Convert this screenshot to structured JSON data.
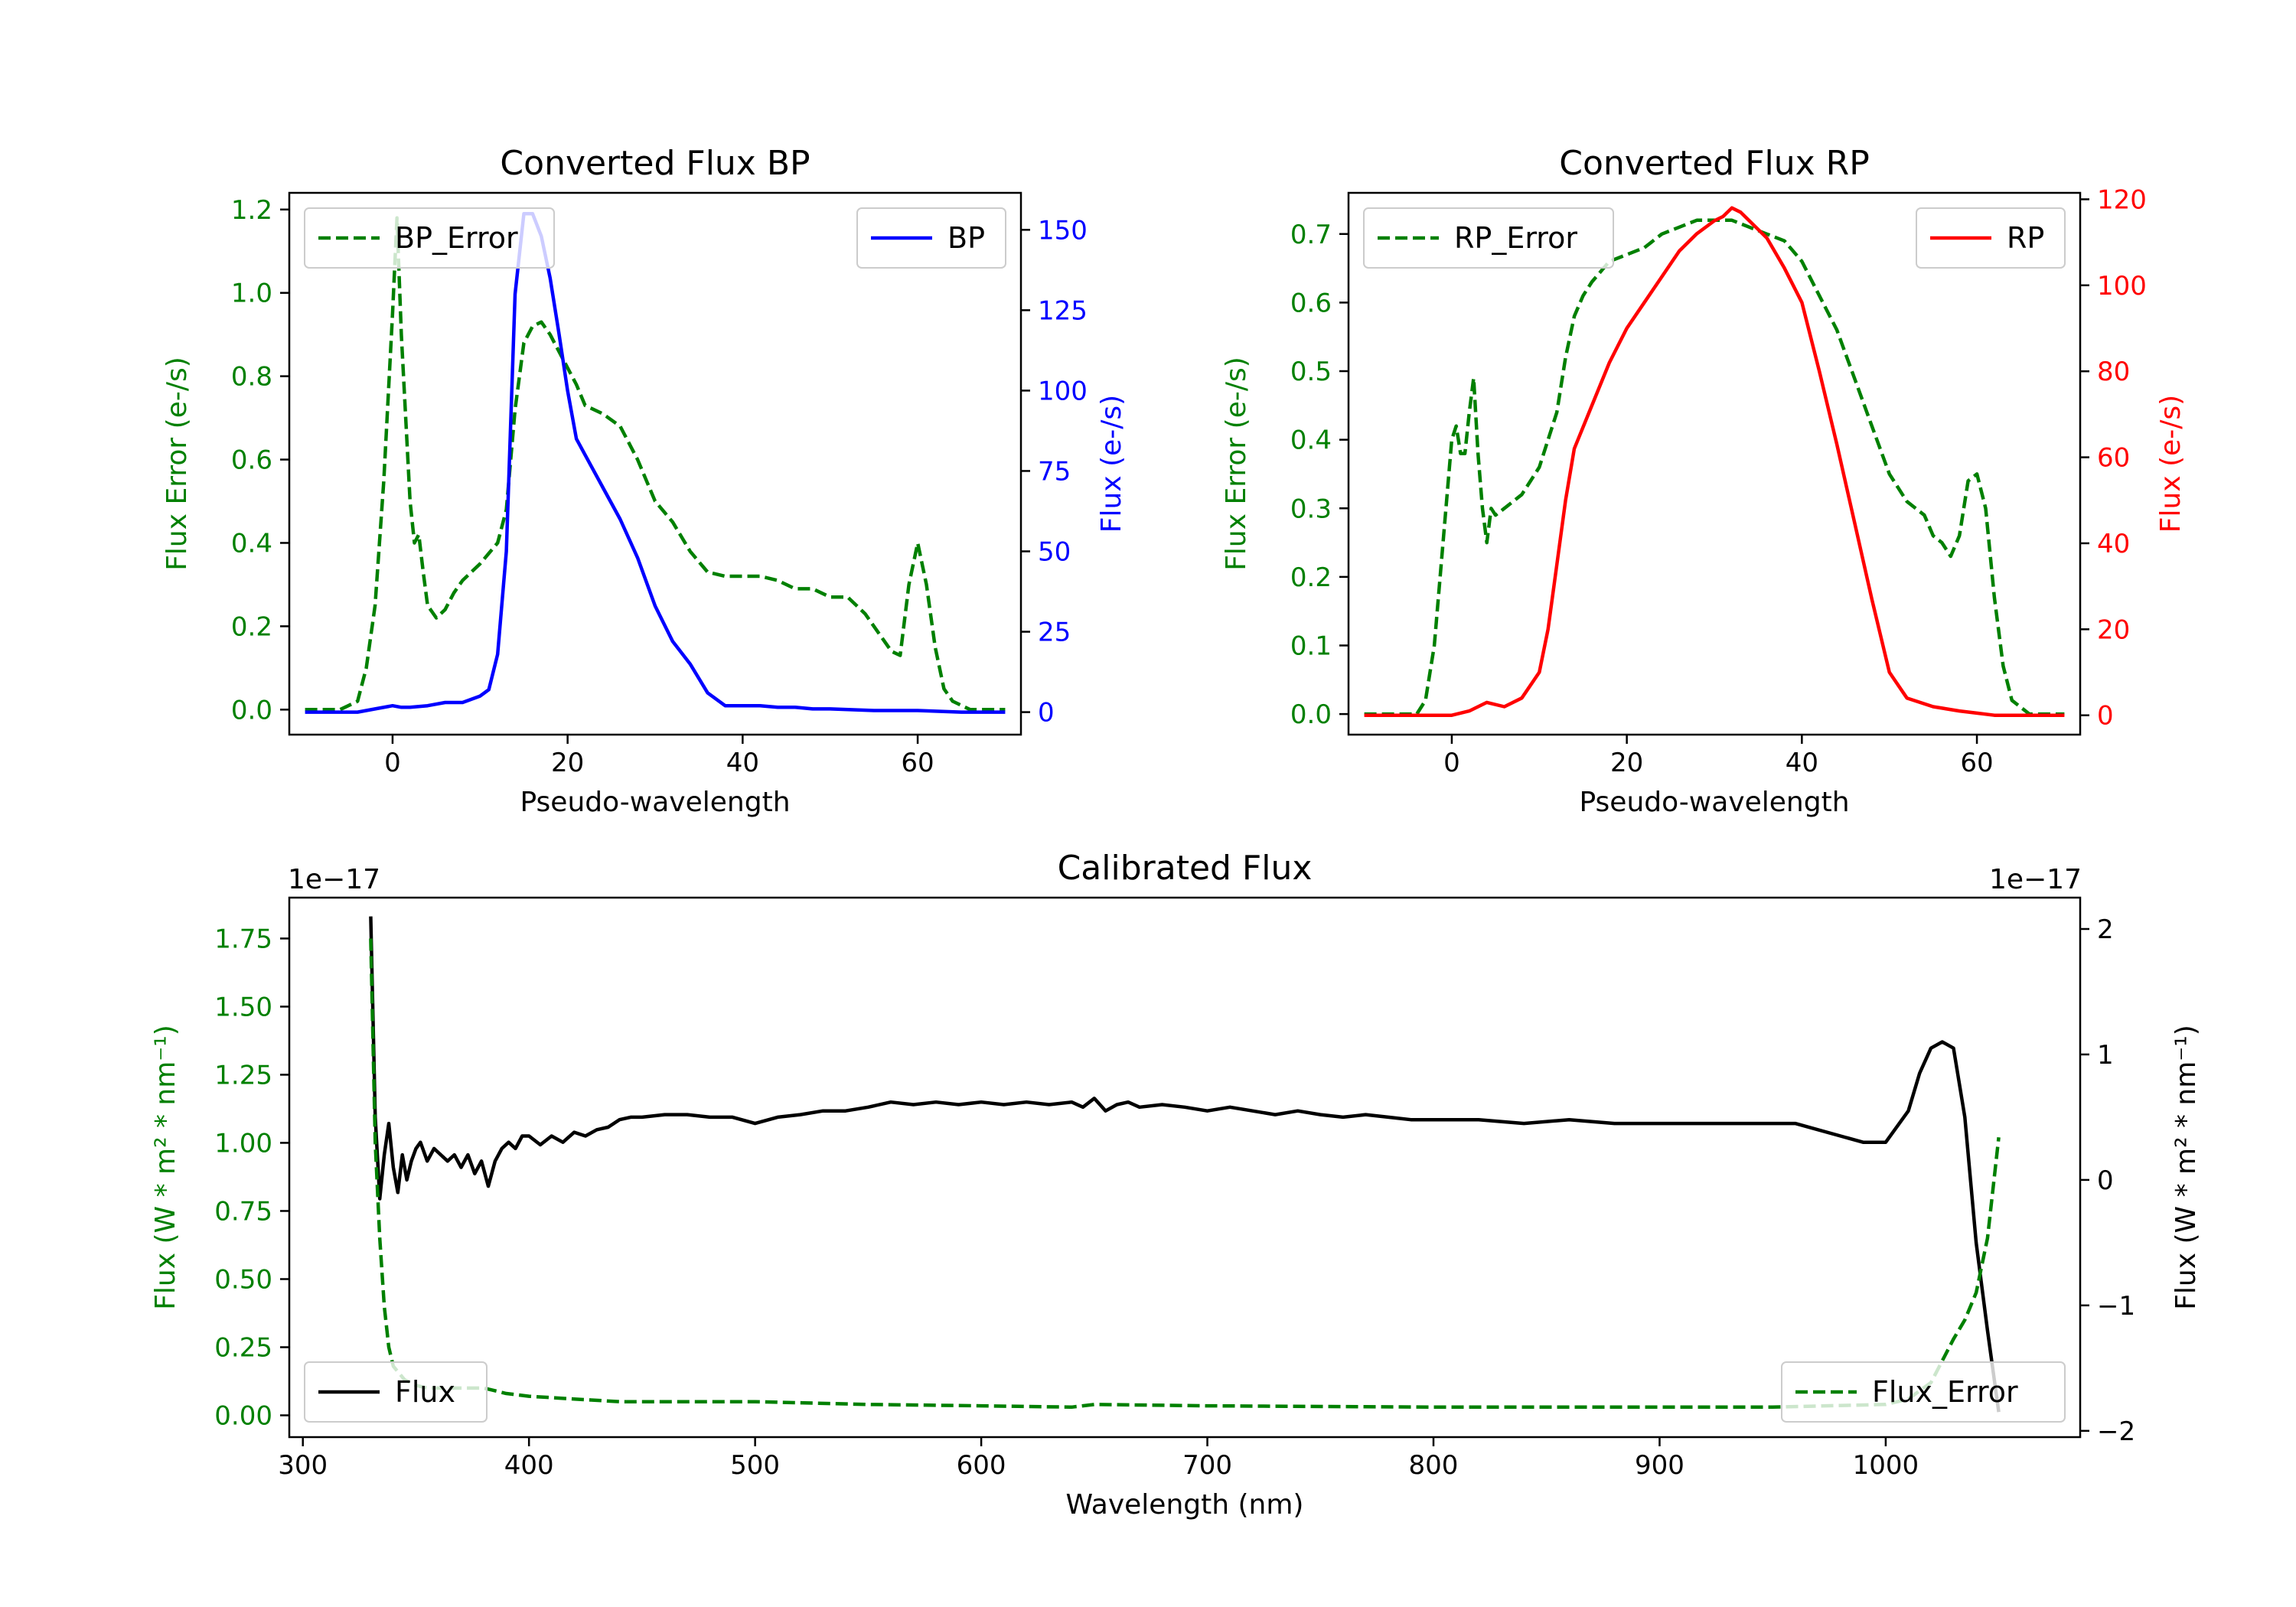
{
  "chart_data": [
    {
      "type": "line",
      "title": "Converted Flux BP",
      "xlabel": "Pseudo-wavelength",
      "ylabel_left": "Flux Error (e-/s)",
      "ylabel_right": "Flux (e-/s)",
      "xlim": [
        -11.8,
        71.8
      ],
      "ylim_left": [
        -0.06,
        1.24
      ],
      "ylim_right": [
        -7,
        161.5
      ],
      "xticks": [
        0,
        20,
        40,
        60
      ],
      "yticks_left": [
        "0.0",
        "0.2",
        "0.4",
        "0.6",
        "0.8",
        "1.0",
        "1.2"
      ],
      "yticks_right": [
        "0",
        "25",
        "50",
        "75",
        "100",
        "125",
        "150"
      ],
      "left_color": "#008000",
      "right_color": "#0000ff",
      "series": [
        {
          "name": "BP_Error",
          "axis": "left",
          "color": "#008000",
          "style": "dashed",
          "x": [
            -10,
            -6,
            -4,
            -3,
            -2,
            -1,
            0,
            0.5,
            1,
            2,
            2.5,
            3,
            3.5,
            4,
            5,
            6,
            7,
            8,
            10,
            12,
            13,
            14,
            15,
            16,
            17,
            18,
            19,
            20,
            21,
            22,
            24,
            26,
            28,
            30,
            32,
            34,
            36,
            38,
            40,
            42,
            44,
            46,
            48,
            50,
            52,
            54,
            56,
            57,
            58,
            59,
            60,
            61,
            62,
            63,
            64,
            66,
            70
          ],
          "y": [
            0,
            0,
            0.02,
            0.1,
            0.25,
            0.55,
            0.95,
            1.18,
            0.9,
            0.5,
            0.4,
            0.42,
            0.33,
            0.25,
            0.22,
            0.24,
            0.28,
            0.31,
            0.35,
            0.4,
            0.48,
            0.72,
            0.88,
            0.92,
            0.93,
            0.9,
            0.86,
            0.82,
            0.78,
            0.73,
            0.71,
            0.68,
            0.6,
            0.5,
            0.45,
            0.38,
            0.33,
            0.32,
            0.32,
            0.32,
            0.31,
            0.29,
            0.29,
            0.27,
            0.27,
            0.23,
            0.17,
            0.14,
            0.13,
            0.3,
            0.4,
            0.3,
            0.15,
            0.05,
            0.02,
            0,
            0
          ]
        },
        {
          "name": "BP",
          "axis": "right",
          "color": "#0000ff",
          "style": "solid",
          "x": [
            -10,
            -6,
            -4,
            -2,
            0,
            1,
            2,
            4,
            6,
            8,
            10,
            11,
            12,
            13,
            14,
            15,
            16,
            17,
            18,
            19,
            20,
            21,
            22,
            24,
            26,
            28,
            30,
            32,
            34,
            36,
            38,
            40,
            42,
            44,
            46,
            48,
            50,
            55,
            60,
            65,
            70
          ],
          "y": [
            0,
            0,
            0,
            1,
            2,
            1.5,
            1.5,
            2,
            3,
            3,
            5,
            7,
            18,
            50,
            130,
            155,
            155,
            148,
            135,
            118,
            100,
            85,
            80,
            70,
            60,
            48,
            33,
            22,
            15,
            6,
            2,
            2,
            2,
            1.5,
            1.5,
            1,
            1,
            0.5,
            0.5,
            0,
            0
          ]
        }
      ],
      "legend": [
        {
          "label": "BP_Error",
          "position": "upper-left"
        },
        {
          "label": "BP",
          "position": "upper-right"
        }
      ]
    },
    {
      "type": "line",
      "title": "Converted Flux RP",
      "xlabel": "Pseudo-wavelength",
      "ylabel_left": "Flux Error (e-/s)",
      "ylabel_right": "Flux (e-/s)",
      "xlim": [
        -11.8,
        71.8
      ],
      "ylim_left": [
        -0.03,
        0.76
      ],
      "ylim_right": [
        -4.5,
        121.5
      ],
      "xticks": [
        0,
        20,
        40,
        60
      ],
      "yticks_left": [
        "0.0",
        "0.1",
        "0.2",
        "0.3",
        "0.4",
        "0.5",
        "0.6",
        "0.7"
      ],
      "yticks_right": [
        "0",
        "20",
        "40",
        "60",
        "80",
        "100",
        "120"
      ],
      "left_color": "#008000",
      "right_color": "#ff0000",
      "series": [
        {
          "name": "RP_Error",
          "axis": "left",
          "color": "#008000",
          "style": "dashed",
          "x": [
            -10,
            -6,
            -4,
            -3,
            -2,
            -1,
            0,
            0.5,
            1,
            1.5,
            2,
            2.5,
            3,
            3.5,
            4,
            4.5,
            5,
            6,
            7,
            8,
            9,
            10,
            12,
            13,
            14,
            15,
            16,
            18,
            20,
            22,
            24,
            26,
            28,
            30,
            32,
            34,
            36,
            38,
            40,
            42,
            44,
            46,
            48,
            50,
            52,
            54,
            55,
            56,
            57,
            58,
            59,
            60,
            61,
            62,
            63,
            64,
            66,
            70
          ],
          "y": [
            0,
            0,
            0,
            0.02,
            0.1,
            0.25,
            0.4,
            0.42,
            0.38,
            0.38,
            0.44,
            0.49,
            0.38,
            0.3,
            0.25,
            0.3,
            0.29,
            0.3,
            0.31,
            0.32,
            0.34,
            0.36,
            0.44,
            0.52,
            0.58,
            0.61,
            0.63,
            0.66,
            0.67,
            0.68,
            0.7,
            0.71,
            0.72,
            0.72,
            0.72,
            0.71,
            0.7,
            0.69,
            0.66,
            0.61,
            0.56,
            0.49,
            0.42,
            0.35,
            0.31,
            0.29,
            0.26,
            0.25,
            0.23,
            0.26,
            0.34,
            0.35,
            0.3,
            0.17,
            0.07,
            0.02,
            0,
            0
          ]
        },
        {
          "name": "RP",
          "axis": "right",
          "color": "#ff0000",
          "style": "solid",
          "x": [
            -10,
            -4,
            -2,
            0,
            2,
            4,
            6,
            8,
            10,
            11,
            12,
            13,
            14,
            16,
            18,
            20,
            22,
            24,
            26,
            28,
            30,
            31,
            32,
            33,
            34,
            35,
            36,
            38,
            40,
            42,
            44,
            46,
            48,
            50,
            52,
            55,
            58,
            60,
            62,
            65,
            70
          ],
          "y": [
            0,
            0,
            0,
            0,
            1,
            3,
            2,
            4,
            10,
            20,
            35,
            50,
            62,
            72,
            82,
            90,
            96,
            102,
            108,
            112,
            115,
            116,
            118,
            117,
            115,
            113,
            111,
            104,
            96,
            80,
            63,
            45,
            27,
            10,
            4,
            2,
            1,
            0.5,
            0,
            0,
            0
          ]
        }
      ],
      "legend": [
        {
          "label": "RP_Error",
          "position": "upper-left"
        },
        {
          "label": "RP",
          "position": "upper-right"
        }
      ]
    },
    {
      "type": "line",
      "title": "Calibrated Flux",
      "xlabel": "Wavelength (nm)",
      "ylabel_left": "Flux (W * m² * nm⁻¹)",
      "ylabel_right": "Flux (W * m² * nm⁻¹)",
      "offset_left": "1e−17",
      "offset_right": "1e−17",
      "xlim": [
        294,
        1086
      ],
      "ylim_left": [
        -0.08,
        1.9
      ],
      "ylim_right": [
        -2.05,
        2.25
      ],
      "xticks": [
        300,
        400,
        500,
        600,
        700,
        800,
        900,
        1000
      ],
      "yticks_left": [
        "0.00",
        "0.25",
        "0.50",
        "0.75",
        "1.00",
        "1.25",
        "1.50",
        "1.75"
      ],
      "yticks_right": [
        "−2",
        "−1",
        "0",
        "1",
        "2"
      ],
      "left_color": "#008000",
      "right_color": "#000000",
      "series": [
        {
          "name": "Flux",
          "axis": "right",
          "color": "#000000",
          "style": "solid",
          "x": [
            330,
            332,
            334,
            336,
            338,
            340,
            342,
            344,
            346,
            348,
            350,
            352,
            355,
            358,
            361,
            364,
            367,
            370,
            373,
            376,
            379,
            382,
            385,
            388,
            391,
            394,
            397,
            400,
            405,
            410,
            415,
            420,
            425,
            430,
            435,
            440,
            445,
            450,
            460,
            470,
            480,
            490,
            500,
            510,
            520,
            530,
            540,
            550,
            560,
            570,
            580,
            590,
            600,
            610,
            620,
            630,
            640,
            645,
            650,
            655,
            660,
            665,
            670,
            680,
            690,
            700,
            710,
            720,
            730,
            740,
            750,
            760,
            770,
            780,
            790,
            800,
            820,
            840,
            860,
            880,
            900,
            920,
            940,
            960,
            980,
            990,
            1000,
            1010,
            1015,
            1020,
            1025,
            1030,
            1035,
            1040,
            1045,
            1050
          ],
          "y": [
            2.1,
            0.5,
            -0.15,
            0.2,
            0.45,
            0.1,
            -0.1,
            0.2,
            0,
            0.15,
            0.25,
            0.3,
            0.15,
            0.25,
            0.2,
            0.15,
            0.2,
            0.1,
            0.2,
            0.05,
            0.15,
            -0.05,
            0.15,
            0.25,
            0.3,
            0.25,
            0.35,
            0.35,
            0.28,
            0.35,
            0.3,
            0.38,
            0.35,
            0.4,
            0.42,
            0.48,
            0.5,
            0.5,
            0.52,
            0.52,
            0.5,
            0.5,
            0.45,
            0.5,
            0.52,
            0.55,
            0.55,
            0.58,
            0.62,
            0.6,
            0.62,
            0.6,
            0.62,
            0.6,
            0.62,
            0.6,
            0.62,
            0.58,
            0.65,
            0.55,
            0.6,
            0.62,
            0.58,
            0.6,
            0.58,
            0.55,
            0.58,
            0.55,
            0.52,
            0.55,
            0.52,
            0.5,
            0.52,
            0.5,
            0.48,
            0.48,
            0.48,
            0.45,
            0.48,
            0.45,
            0.45,
            0.45,
            0.45,
            0.45,
            0.35,
            0.3,
            0.3,
            0.55,
            0.85,
            1.05,
            1.1,
            1.05,
            0.5,
            -0.5,
            -1.2,
            -1.85
          ]
        },
        {
          "name": "Flux_Error",
          "axis": "left",
          "color": "#008000",
          "style": "dashed",
          "x": [
            330,
            332,
            334,
            336,
            338,
            340,
            345,
            350,
            355,
            360,
            370,
            380,
            390,
            400,
            420,
            440,
            460,
            480,
            500,
            550,
            600,
            640,
            650,
            700,
            800,
            900,
            950,
            1000,
            1010,
            1020,
            1025,
            1030,
            1035,
            1040,
            1045,
            1050
          ],
          "y": [
            1.75,
            1.0,
            0.65,
            0.4,
            0.25,
            0.18,
            0.13,
            0.11,
            0.1,
            0.1,
            0.1,
            0.1,
            0.08,
            0.07,
            0.06,
            0.05,
            0.05,
            0.05,
            0.05,
            0.04,
            0.035,
            0.03,
            0.04,
            0.035,
            0.03,
            0.03,
            0.03,
            0.04,
            0.06,
            0.12,
            0.2,
            0.28,
            0.35,
            0.45,
            0.65,
            1.02
          ]
        }
      ],
      "legend": [
        {
          "label": "Flux",
          "position": "lower-left"
        },
        {
          "label": "Flux_Error",
          "position": "lower-right"
        }
      ]
    }
  ]
}
